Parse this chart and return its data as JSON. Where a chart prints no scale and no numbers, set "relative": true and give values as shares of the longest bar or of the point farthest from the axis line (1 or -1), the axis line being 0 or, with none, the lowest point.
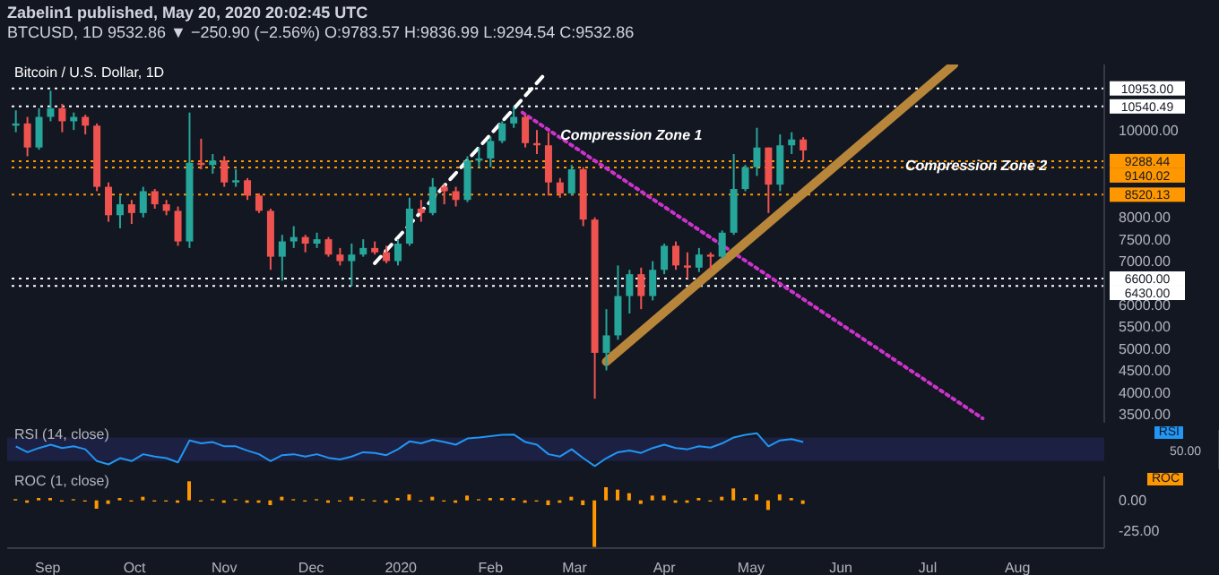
{
  "chart_data": [
    {
      "type": "candlestick",
      "title": "Zabelin1 published, May 20, 2020 20:02:45 UTC",
      "subtitle": "BTCUSD, 1D 9532.86 ▼ −250.90 (−2.56%) O:9783.57 H:9836.99 L:9294.54 C:9532.86",
      "annotations": [
        "Bitcoin / U.S. Dollar, 1D",
        {
          "text": "Compression Zone 1",
          "x": "2020-02-22",
          "y": 9900
        },
        "Compression Zone 2"
      ],
      "x": [
        "2019-08-21",
        "2019-08-25",
        "2019-08-29",
        "2019-09-02",
        "2019-09-06",
        "2019-09-10",
        "2019-09-14",
        "2019-09-18",
        "2019-09-22",
        "2019-09-26",
        "2019-09-30",
        "2019-10-04",
        "2019-10-08",
        "2019-10-12",
        "2019-10-16",
        "2019-10-20",
        "2019-10-24",
        "2019-10-28",
        "2019-11-01",
        "2019-11-05",
        "2019-11-09",
        "2019-11-13",
        "2019-11-17",
        "2019-11-21",
        "2019-11-25",
        "2019-11-29",
        "2019-12-03",
        "2019-12-07",
        "2019-12-11",
        "2019-12-15",
        "2019-12-19",
        "2019-12-23",
        "2019-12-27",
        "2019-12-31",
        "2020-01-04",
        "2020-01-08",
        "2020-01-12",
        "2020-01-16",
        "2020-01-20",
        "2020-01-24",
        "2020-01-28",
        "2020-02-01",
        "2020-02-05",
        "2020-02-09",
        "2020-02-13",
        "2020-02-17",
        "2020-02-21",
        "2020-02-25",
        "2020-02-29",
        "2020-03-04",
        "2020-03-08",
        "2020-03-12",
        "2020-03-16",
        "2020-03-20",
        "2020-03-24",
        "2020-03-28",
        "2020-04-01",
        "2020-04-05",
        "2020-04-09",
        "2020-04-13",
        "2020-04-17",
        "2020-04-21",
        "2020-04-25",
        "2020-04-29",
        "2020-05-03",
        "2020-05-07",
        "2020-05-11",
        "2020-05-15",
        "2020-05-19"
      ],
      "ohlc": [
        [
          10100,
          10450,
          9950,
          10150
        ],
        [
          10150,
          10300,
          9400,
          9600
        ],
        [
          9600,
          10500,
          9550,
          10300
        ],
        [
          10300,
          10900,
          10200,
          10500
        ],
        [
          10500,
          10600,
          9950,
          10200
        ],
        [
          10200,
          10400,
          10000,
          10300
        ],
        [
          10300,
          10350,
          9900,
          10100
        ],
        [
          10100,
          10150,
          8600,
          8700
        ],
        [
          8700,
          8800,
          7900,
          8050
        ],
        [
          8050,
          8500,
          7750,
          8300
        ],
        [
          8300,
          8400,
          7850,
          8100
        ],
        [
          8100,
          8700,
          8000,
          8600
        ],
        [
          8600,
          8650,
          8200,
          8300
        ],
        [
          8300,
          8400,
          8050,
          8150
        ],
        [
          8150,
          8250,
          7350,
          7450
        ],
        [
          7450,
          10400,
          7300,
          9250
        ],
        [
          9250,
          9800,
          9100,
          9200
        ],
        [
          9200,
          9450,
          9000,
          9300
        ],
        [
          9300,
          9400,
          8700,
          8800
        ],
        [
          8800,
          9100,
          8700,
          8850
        ],
        [
          8850,
          8900,
          8400,
          8500
        ],
        [
          8500,
          8550,
          8100,
          8150
        ],
        [
          8150,
          8200,
          6800,
          7100
        ],
        [
          7100,
          7600,
          6550,
          7450
        ],
        [
          7450,
          7800,
          7300,
          7550
        ],
        [
          7550,
          7600,
          7200,
          7400
        ],
        [
          7400,
          7650,
          7300,
          7500
        ],
        [
          7500,
          7550,
          7100,
          7150
        ],
        [
          7150,
          7300,
          6900,
          7000
        ],
        [
          7000,
          7400,
          6430,
          7150
        ],
        [
          7150,
          7500,
          7100,
          7300
        ],
        [
          7300,
          7450,
          7150,
          7200
        ],
        [
          7200,
          7350,
          6950,
          7000
        ],
        [
          7000,
          7500,
          6900,
          7400
        ],
        [
          7400,
          8450,
          7350,
          8200
        ],
        [
          8200,
          8400,
          7900,
          8100
        ],
        [
          8100,
          8900,
          8050,
          8700
        ],
        [
          8700,
          8750,
          8300,
          8600
        ],
        [
          8600,
          8700,
          8250,
          8400
        ],
        [
          8400,
          9400,
          8350,
          9300
        ],
        [
          9300,
          9600,
          9150,
          9350
        ],
        [
          9350,
          9850,
          9150,
          9750
        ],
        [
          9750,
          10200,
          9700,
          10150
        ],
        [
          10150,
          10540,
          10050,
          10300
        ],
        [
          10300,
          10350,
          9600,
          9700
        ],
        [
          9700,
          10000,
          9450,
          9650
        ],
        [
          9650,
          9950,
          8500,
          8800
        ],
        [
          8800,
          8900,
          8450,
          8550
        ],
        [
          8550,
          9200,
          8500,
          9100
        ],
        [
          9100,
          9150,
          7800,
          7950
        ],
        [
          7950,
          8000,
          3850,
          4900
        ],
        [
          4900,
          5900,
          4500,
          5300
        ],
        [
          5300,
          6900,
          5200,
          6200
        ],
        [
          6200,
          6800,
          5800,
          6700
        ],
        [
          6700,
          6850,
          5900,
          6200
        ],
        [
          6200,
          7000,
          6100,
          6800
        ],
        [
          6800,
          7400,
          6700,
          7350
        ],
        [
          7350,
          7450,
          6800,
          6900
        ],
        [
          6900,
          7200,
          6600,
          6850
        ],
        [
          6850,
          7300,
          6750,
          7150
        ],
        [
          7150,
          7200,
          6800,
          7100
        ],
        [
          7100,
          7700,
          7050,
          7650
        ],
        [
          7650,
          9450,
          7600,
          8650
        ],
        [
          8650,
          9200,
          8600,
          9150
        ],
        [
          9150,
          10050,
          8950,
          9600
        ],
        [
          9600,
          9600,
          8100,
          8750
        ],
        [
          8750,
          9900,
          8600,
          9650
        ],
        [
          9650,
          9950,
          9450,
          9783.57
        ],
        [
          9783.57,
          9836.99,
          9294.54,
          9532.86
        ]
      ],
      "colors": [
        "#26a69a",
        "#ef5350",
        "#26a69a",
        "#26a69a",
        "#ef5350",
        "#26a69a",
        "#ef5350",
        "#ef5350",
        "#ef5350",
        "#26a69a",
        "#ef5350",
        "#26a69a",
        "#ef5350",
        "#ef5350",
        "#ef5350",
        "#26a69a",
        "#ef5350",
        "#26a69a",
        "#ef5350",
        "#26a69a",
        "#ef5350",
        "#ef5350",
        "#ef5350",
        "#26a69a",
        "#26a69a",
        "#ef5350",
        "#26a69a",
        "#ef5350",
        "#ef5350",
        "#26a69a",
        "#26a69a",
        "#ef5350",
        "#ef5350",
        "#26a69a",
        "#26a69a",
        "#ef5350",
        "#26a69a",
        "#ef5350",
        "#ef5350",
        "#26a69a",
        "#26a69a",
        "#26a69a",
        "#26a69a",
        "#26a69a",
        "#ef5350",
        "#ef5350",
        "#ef5350",
        "#ef5350",
        "#26a69a",
        "#ef5350",
        "#ef5350",
        "#26a69a",
        "#26a69a",
        "#26a69a",
        "#ef5350",
        "#26a69a",
        "#26a69a",
        "#ef5350",
        "#ef5350",
        "#26a69a",
        "#ef5350",
        "#26a69a",
        "#26a69a",
        "#26a69a",
        "#26a69a",
        "#ef5350",
        "#26a69a",
        "#26a69a",
        "#ef5350"
      ],
      "series": [
        {
          "type": "line",
          "x": [
            "2020-02-12",
            "2020-07-20"
          ],
          "values": [
            10400,
            3400
          ],
          "color": "#cc33cc",
          "line_style": "dotted"
        },
        {
          "type": "line",
          "x": [
            "2020-03-12",
            "2020-07-10"
          ],
          "values": [
            4700,
            11500
          ],
          "color": "#b8863b",
          "line_style": "solid"
        },
        {
          "type": "line",
          "x": [
            "2019-12-23",
            "2020-02-20"
          ],
          "values": [
            6950,
            11300
          ],
          "color": "#ffffff",
          "line_style": "dashed"
        }
      ],
      "xlim": [
        "2019-08-18",
        "2020-08-31"
      ],
      "ylim": [
        3300,
        11500
      ],
      "yticks": [
        {
          "value": 3500,
          "label": "3500.00"
        },
        {
          "value": 4000,
          "label": "4000.00"
        },
        {
          "value": 4500,
          "label": "4500.00"
        },
        {
          "value": 5000,
          "label": "5000.00"
        },
        {
          "value": 5500,
          "label": "5500.00"
        },
        {
          "value": 6000,
          "label": "6000.00"
        },
        {
          "value": 7000,
          "label": "7000.00"
        },
        {
          "value": 7500,
          "label": "7500.00"
        },
        {
          "value": 8000,
          "label": "8000.00"
        },
        {
          "value": 10000,
          "label": "10000.00"
        }
      ],
      "ref_lines": [
        {
          "axis": "y",
          "value": 10953,
          "label": "10953.00",
          "color": "#ffffff",
          "line_style": "dotted"
        },
        {
          "axis": "y",
          "value": 10540.49,
          "label": "10540.49",
          "color": "#ffffff",
          "line_style": "dotted"
        },
        {
          "axis": "y",
          "value": 9288.44,
          "label": "9288.44",
          "color": "#ff9800",
          "line_style": "dotted"
        },
        {
          "axis": "y",
          "value": 9140.02,
          "label": "9140.02",
          "color": "#ff9800",
          "line_style": "dotted"
        },
        {
          "axis": "y",
          "value": 8520.13,
          "label": "8520.13",
          "color": "#ff9800",
          "line_style": "dotted"
        },
        {
          "axis": "y",
          "value": 6600,
          "label": "6600.00",
          "color": "#ffffff",
          "line_style": "dotted"
        },
        {
          "axis": "y",
          "value": 6430,
          "label": "6430.00",
          "color": "#ffffff",
          "line_style": "dotted"
        }
      ],
      "tick_labels": "y"
    },
    {
      "type": "line",
      "title": "RSI (14, close)",
      "annotations": [
        "RSI",
        "50.00"
      ],
      "relative": true,
      "x": [
        "2019-08-21",
        "2019-08-25",
        "2019-08-29",
        "2019-09-02",
        "2019-09-06",
        "2019-09-10",
        "2019-09-14",
        "2019-09-18",
        "2019-09-22",
        "2019-09-26",
        "2019-09-30",
        "2019-10-04",
        "2019-10-08",
        "2019-10-12",
        "2019-10-16",
        "2019-10-20",
        "2019-10-24",
        "2019-10-28",
        "2019-11-01",
        "2019-11-05",
        "2019-11-09",
        "2019-11-13",
        "2019-11-17",
        "2019-11-21",
        "2019-11-25",
        "2019-11-29",
        "2019-12-03",
        "2019-12-07",
        "2019-12-11",
        "2019-12-15",
        "2019-12-19",
        "2019-12-23",
        "2019-12-27",
        "2019-12-31",
        "2020-01-04",
        "2020-01-08",
        "2020-01-12",
        "2020-01-16",
        "2020-01-20",
        "2020-01-24",
        "2020-01-28",
        "2020-02-01",
        "2020-02-05",
        "2020-02-09",
        "2020-02-13",
        "2020-02-17",
        "2020-02-21",
        "2020-02-25",
        "2020-02-29",
        "2020-03-04",
        "2020-03-08",
        "2020-03-12",
        "2020-03-16",
        "2020-03-20",
        "2020-03-24",
        "2020-03-28",
        "2020-04-01",
        "2020-04-05",
        "2020-04-09",
        "2020-04-13",
        "2020-04-17",
        "2020-04-21",
        "2020-04-25",
        "2020-04-29",
        "2020-05-03",
        "2020-05-07",
        "2020-05-11",
        "2020-05-15",
        "2020-05-19"
      ],
      "values": [
        0.6,
        0.42,
        0.55,
        0.65,
        0.55,
        0.6,
        0.51,
        0.15,
        0.05,
        0.24,
        0.15,
        0.36,
        0.29,
        0.24,
        0.11,
        0.78,
        0.69,
        0.73,
        0.6,
        0.6,
        0.47,
        0.36,
        0.15,
        0.33,
        0.36,
        0.29,
        0.36,
        0.25,
        0.2,
        0.29,
        0.42,
        0.4,
        0.33,
        0.51,
        0.75,
        0.69,
        0.8,
        0.73,
        0.65,
        0.84,
        0.87,
        0.91,
        0.95,
        0.96,
        0.73,
        0.65,
        0.36,
        0.29,
        0.51,
        0.24,
        0,
        0.24,
        0.42,
        0.47,
        0.4,
        0.55,
        0.65,
        0.55,
        0.51,
        0.6,
        0.56,
        0.69,
        0.87,
        0.95,
        1,
        0.6,
        0.78,
        0.82,
        0.73
      ],
      "color": "#2196f3",
      "xlim": [
        "2019-08-18",
        "2020-08-31"
      ],
      "bands": [
        {
          "axis": "y",
          "from": 0.15,
          "to": 0.87,
          "color": "#1c2144"
        }
      ],
      "tick_labels": "y"
    },
    {
      "type": "bar",
      "title": "ROC (1, close)",
      "annotations": [
        "ROC"
      ],
      "x": [
        "2019-08-21",
        "2019-08-25",
        "2019-08-29",
        "2019-09-02",
        "2019-09-06",
        "2019-09-10",
        "2019-09-14",
        "2019-09-18",
        "2019-09-22",
        "2019-09-26",
        "2019-09-30",
        "2019-10-04",
        "2019-10-08",
        "2019-10-12",
        "2019-10-16",
        "2019-10-20",
        "2019-10-24",
        "2019-10-28",
        "2019-11-01",
        "2019-11-05",
        "2019-11-09",
        "2019-11-13",
        "2019-11-17",
        "2019-11-21",
        "2019-11-25",
        "2019-11-29",
        "2019-12-03",
        "2019-12-07",
        "2019-12-11",
        "2019-12-15",
        "2019-12-19",
        "2019-12-23",
        "2019-12-27",
        "2019-12-31",
        "2020-01-04",
        "2020-01-08",
        "2020-01-12",
        "2020-01-16",
        "2020-01-20",
        "2020-01-24",
        "2020-01-28",
        "2020-02-01",
        "2020-02-05",
        "2020-02-09",
        "2020-02-13",
        "2020-02-17",
        "2020-02-21",
        "2020-02-25",
        "2020-02-29",
        "2020-03-04",
        "2020-03-08",
        "2020-03-12",
        "2020-03-16",
        "2020-03-20",
        "2020-03-24",
        "2020-03-28",
        "2020-04-01",
        "2020-04-05",
        "2020-04-09",
        "2020-04-13",
        "2020-04-17",
        "2020-04-21",
        "2020-04-25",
        "2020-04-29",
        "2020-05-03",
        "2020-05-07",
        "2020-05-11",
        "2020-05-15",
        "2020-05-19"
      ],
      "values": [
        1,
        -2,
        2,
        2,
        -1,
        1,
        -1,
        -7,
        -3,
        2,
        -1,
        3,
        -1,
        -1,
        -2,
        16,
        -1,
        1,
        -2,
        1,
        -2,
        -2,
        -4,
        3,
        1,
        -1,
        1,
        -2,
        -1,
        3,
        1,
        -1,
        -2,
        2,
        5,
        -1,
        3,
        -1,
        -2,
        4,
        1,
        2,
        2,
        2,
        -2,
        -1,
        -4,
        -2,
        3,
        -4,
        -39,
        11,
        9,
        6,
        -3,
        4,
        4,
        -2,
        -2,
        2,
        -1,
        3,
        10,
        2,
        5,
        -8,
        5,
        2,
        -3
      ],
      "color": "#ff9800",
      "xlim": [
        "2019-08-18",
        "2020-08-31"
      ],
      "xticks": [
        {
          "value": "2019-09-01",
          "label": "Sep"
        },
        {
          "value": "2019-10-01",
          "label": "Oct"
        },
        {
          "value": "2019-11-01",
          "label": "Nov"
        },
        {
          "value": "2019-12-01",
          "label": "Dec"
        },
        {
          "value": "2020-01-01",
          "label": "2020"
        },
        {
          "value": "2020-02-01",
          "label": "Feb"
        },
        {
          "value": "2020-03-01",
          "label": "Mar"
        },
        {
          "value": "2020-04-01",
          "label": "Apr"
        },
        {
          "value": "2020-05-01",
          "label": "May"
        },
        {
          "value": "2020-06-01",
          "label": "Jun"
        },
        {
          "value": "2020-07-01",
          "label": "Jul"
        },
        {
          "value": "2020-08-01",
          "label": "Aug"
        }
      ],
      "ylim": [
        -40,
        20
      ],
      "yticks": [
        {
          "value": -25,
          "label": "-25.00"
        },
        {
          "value": 0,
          "label": "0.00"
        }
      ]
    }
  ]
}
